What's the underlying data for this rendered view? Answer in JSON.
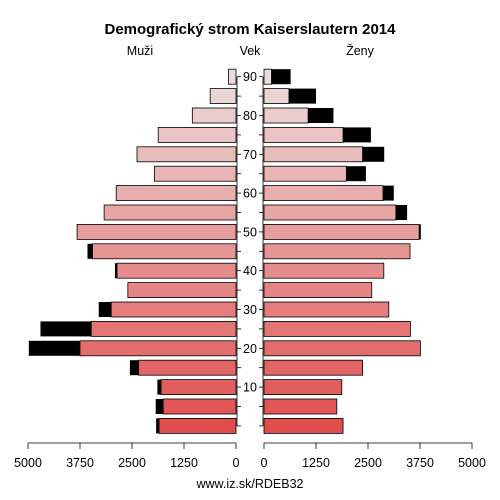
{
  "chart_data": {
    "type": "bar",
    "title": "Demografický strom Kaiserslautern 2014",
    "left_header": "Muži",
    "center_header": "Vek",
    "right_header": "Ženy",
    "footer": "www.iz.sk/RDEB32",
    "age_groups": [
      "0-4",
      "5-9",
      "10-14",
      "15-19",
      "20-24",
      "25-29",
      "30-34",
      "35-39",
      "40-44",
      "45-49",
      "50-54",
      "55-59",
      "60-64",
      "65-69",
      "70-74",
      "75-79",
      "80-84",
      "85-89",
      "90+"
    ],
    "age_tick_labels": [
      "10",
      "20",
      "30",
      "40",
      "50",
      "60",
      "70",
      "80",
      "90"
    ],
    "age_tick_values": [
      10,
      20,
      30,
      40,
      50,
      60,
      70,
      80,
      90
    ],
    "xlim": [
      0,
      5000
    ],
    "x_tick_labels_left": [
      "5000",
      "3750",
      "2500",
      "1250",
      "0"
    ],
    "x_tick_labels_right": [
      "0",
      "1250",
      "2500",
      "3750",
      "5000"
    ],
    "series": [
      {
        "name": "Muži",
        "values": [
          1920,
          1930,
          1890,
          2550,
          4980,
          4700,
          3300,
          2600,
          2910,
          3570,
          3820,
          3170,
          2880,
          1960,
          2380,
          1870,
          1050,
          620,
          180
        ],
        "excess": [
          70,
          180,
          90,
          210,
          1230,
          1220,
          300,
          0,
          50,
          120,
          0,
          0,
          0,
          0,
          0,
          0,
          0,
          0,
          0
        ]
      },
      {
        "name": "Ženy",
        "values": [
          1900,
          1750,
          1870,
          2370,
          3760,
          3520,
          3000,
          2590,
          2880,
          3510,
          3770,
          3440,
          3120,
          2450,
          2890,
          2570,
          1670,
          1250,
          640
        ],
        "excess": [
          0,
          0,
          0,
          0,
          0,
          0,
          0,
          0,
          0,
          0,
          40,
          270,
          260,
          470,
          520,
          670,
          610,
          650,
          460
        ]
      }
    ],
    "colors": {
      "excess": "#000000",
      "outline": "#000000",
      "grid": "#000000"
    }
  }
}
